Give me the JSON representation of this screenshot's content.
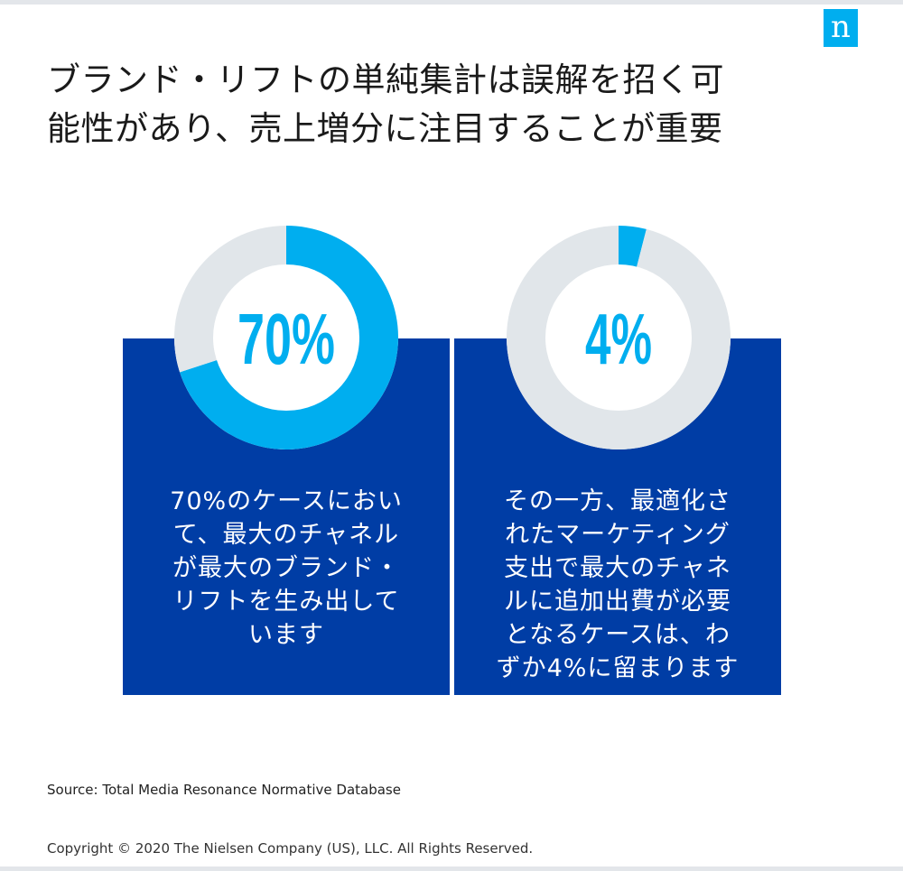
{
  "brand": {
    "logo_text": "n",
    "accent": "#00aeef",
    "panel": "#003da5"
  },
  "headline": {
    "lines": [
      "ブランド・リフトの単純集計は誤解を招く可",
      "能性があり、売上増分に注目することが重要"
    ]
  },
  "chart_data": [
    {
      "type": "pie",
      "style": "donut",
      "value_percent": 70,
      "center_label": "70%",
      "segments": [
        {
          "value": 70,
          "color": "#00aeef"
        },
        {
          "value": 30,
          "color": "#e1e6ea"
        }
      ],
      "caption_lines": [
        "70%のケースにおい",
        "て、最大のチャネル",
        "が最大のブランド・",
        "リフトを生み出して",
        "います"
      ]
    },
    {
      "type": "pie",
      "style": "donut",
      "value_percent": 4,
      "center_label": "4%",
      "segments": [
        {
          "value": 4,
          "color": "#00aeef"
        },
        {
          "value": 96,
          "color": "#e1e6ea"
        }
      ],
      "caption_lines": [
        "その一方、最適化さ",
        "れたマーケティング",
        "支出で最大のチャネ",
        "ルに追加出費が必要",
        "となるケースは、わ",
        "ずか4%に留まります"
      ]
    }
  ],
  "footer": {
    "source": "Source: Total Media Resonance Normative Database",
    "copyright": "Copyright © 2020 The Nielsen Company (US), LLC. All Rights Reserved."
  }
}
